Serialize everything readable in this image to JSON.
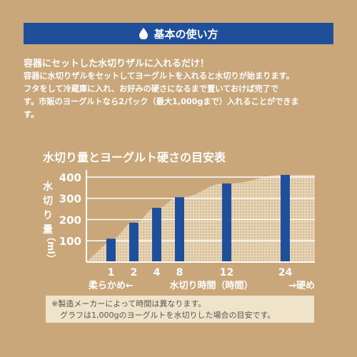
{
  "banner": {
    "icon": "water-drop-icon",
    "title": "基本の使い方"
  },
  "intro": {
    "lead": "容器にセットした水切りザルに入れるだけ！",
    "lines": [
      "容器に水切りザルをセットしてヨーグルトを入れると水切りが始まります。",
      "フタをして冷蔵庫に入れ、お好みの硬さになるまで置いておけば完了で",
      "す。市販のヨーグルトなら2パック（最大1,000gまで）入れることができま",
      "す。"
    ]
  },
  "chart_data": {
    "type": "bar",
    "title": "水切り量とヨーグルト硬さの目安表",
    "ylabel_chars": [
      "水",
      "切",
      "り",
      "量"
    ],
    "ylabel_unit": "（ml）",
    "yticks": [
      100,
      200,
      300,
      400
    ],
    "ylim": [
      0,
      420
    ],
    "categories": [
      "1",
      "2",
      "4",
      "8",
      "12",
      "24"
    ],
    "values": [
      110,
      185,
      255,
      305,
      370,
      410
    ],
    "xlabel": "水切り時間（時間）",
    "left_caption": "柔らかめ←",
    "right_caption": "→硬め",
    "grid": true,
    "colors": {
      "bar": "#1F4E9A",
      "axis": "#ffffff",
      "area": "#E6D3B3"
    }
  },
  "notes": [
    "※製造メーカーによって時間は異なります。",
    "グラフは1,000gのヨーグルトを水切りした場合の目安です。"
  ]
}
